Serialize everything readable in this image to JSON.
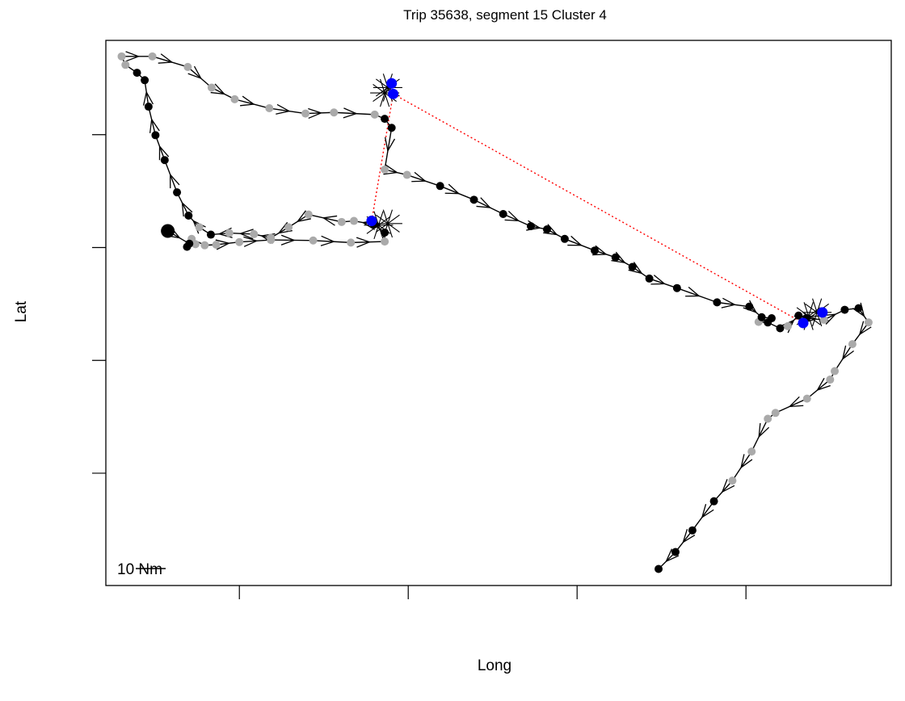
{
  "chart_data": {
    "type": "scatter",
    "title": "Trip 35638, segment 15 Cluster 4",
    "xlabel": "Long",
    "ylabel": "Lat",
    "x_ticks": 4,
    "y_ticks": 4,
    "tick_labels_shown": false,
    "grid": false,
    "legend": "none",
    "xlim": [
      0,
      100
    ],
    "ylim": [
      0,
      100
    ],
    "scale_bar": {
      "label": "10 Nm"
    },
    "colors": {
      "track": "#000000",
      "point_dark": "#000000",
      "point_light": "#aaaaaa",
      "cluster_point": "#0000ff",
      "connector": "#ff0000"
    },
    "track": [
      {
        "x": 70.8,
        "y": 1.6,
        "c": "d"
      },
      {
        "x": 73.0,
        "y": 4.8,
        "c": "d"
      },
      {
        "x": 75.2,
        "y": 8.9,
        "c": "d"
      },
      {
        "x": 78.0,
        "y": 14.4,
        "c": "d"
      },
      {
        "x": 80.4,
        "y": 18.3,
        "c": "l"
      },
      {
        "x": 82.9,
        "y": 23.8,
        "c": "l"
      },
      {
        "x": 85.0,
        "y": 30.0,
        "c": "l"
      },
      {
        "x": 86.0,
        "y": 31.1,
        "c": "l"
      },
      {
        "x": 90.1,
        "y": 33.8,
        "c": "l"
      },
      {
        "x": 93.1,
        "y": 37.4,
        "c": "l"
      },
      {
        "x": 93.7,
        "y": 39.0,
        "c": "l"
      },
      {
        "x": 96.0,
        "y": 44.1,
        "c": "l"
      },
      {
        "x": 98.1,
        "y": 48.2,
        "c": "l"
      },
      {
        "x": 96.8,
        "y": 50.9,
        "c": "d"
      },
      {
        "x": 95.0,
        "y": 50.6,
        "c": "d"
      },
      {
        "x": 92.3,
        "y": 48.7,
        "c": "l"
      },
      {
        "x": 90.0,
        "y": 49.0,
        "c": "d"
      },
      {
        "x": 89.0,
        "y": 49.5,
        "c": "b"
      },
      {
        "x": 87.6,
        "y": 47.5,
        "c": "l"
      },
      {
        "x": 86.6,
        "y": 47.1,
        "c": "b"
      },
      {
        "x": 85.0,
        "y": 48.2,
        "c": "d"
      },
      {
        "x": 83.8,
        "y": 48.3,
        "c": "l"
      },
      {
        "x": 85.5,
        "y": 49.0,
        "c": "d"
      },
      {
        "x": 84.2,
        "y": 49.2,
        "c": "d"
      },
      {
        "x": 82.6,
        "y": 51.2,
        "c": "d"
      },
      {
        "x": 78.4,
        "y": 52.0,
        "c": "d"
      },
      {
        "x": 73.2,
        "y": 54.7,
        "c": "d"
      },
      {
        "x": 69.6,
        "y": 56.5,
        "c": "d"
      },
      {
        "x": 67.4,
        "y": 58.7,
        "c": "d"
      },
      {
        "x": 65.2,
        "y": 60.5,
        "c": "d"
      },
      {
        "x": 62.5,
        "y": 61.8,
        "c": "d"
      },
      {
        "x": 58.6,
        "y": 64.0,
        "c": "d"
      },
      {
        "x": 56.3,
        "y": 65.8,
        "c": "d"
      },
      {
        "x": 54.2,
        "y": 66.4,
        "c": "d"
      },
      {
        "x": 50.6,
        "y": 68.7,
        "c": "d"
      },
      {
        "x": 46.8,
        "y": 71.4,
        "c": "d"
      },
      {
        "x": 42.4,
        "y": 74.0,
        "c": "d"
      },
      {
        "x": 38.1,
        "y": 76.1,
        "c": "l"
      },
      {
        "x": 35.2,
        "y": 77.1,
        "c": "l"
      },
      {
        "x": 36.1,
        "y": 85.0,
        "c": "d"
      },
      {
        "x": 35.2,
        "y": 86.7,
        "c": "d"
      },
      {
        "x": 33.9,
        "y": 87.5,
        "c": "l"
      },
      {
        "x": 28.6,
        "y": 87.9,
        "c": "l"
      },
      {
        "x": 24.9,
        "y": 87.7,
        "c": "l"
      },
      {
        "x": 20.2,
        "y": 88.7,
        "c": "l"
      },
      {
        "x": 15.7,
        "y": 90.4,
        "c": "l"
      },
      {
        "x": 12.7,
        "y": 92.6,
        "c": "l"
      },
      {
        "x": 9.6,
        "y": 96.5,
        "c": "l"
      },
      {
        "x": 5.0,
        "y": 98.5,
        "c": "l"
      },
      {
        "x": 1.0,
        "y": 98.5,
        "c": "l"
      },
      {
        "x": 1.5,
        "y": 96.9,
        "c": "l"
      },
      {
        "x": 3.0,
        "y": 95.4,
        "c": "d"
      },
      {
        "x": 4.0,
        "y": 94.0,
        "c": "d"
      },
      {
        "x": 4.5,
        "y": 89.0,
        "c": "d"
      },
      {
        "x": 5.4,
        "y": 83.6,
        "c": "d"
      },
      {
        "x": 6.6,
        "y": 78.9,
        "c": "d"
      },
      {
        "x": 8.2,
        "y": 72.8,
        "c": "d"
      },
      {
        "x": 9.7,
        "y": 68.4,
        "c": "d"
      },
      {
        "x": 11.1,
        "y": 66.2,
        "c": "l"
      },
      {
        "x": 12.6,
        "y": 64.8,
        "c": "d"
      },
      {
        "x": 15.0,
        "y": 65.1,
        "c": "l"
      },
      {
        "x": 18.2,
        "y": 64.9,
        "c": "l"
      },
      {
        "x": 20.4,
        "y": 64.2,
        "c": "l"
      },
      {
        "x": 22.7,
        "y": 66.2,
        "c": "l"
      },
      {
        "x": 25.3,
        "y": 68.6,
        "c": "l"
      },
      {
        "x": 29.6,
        "y": 67.2,
        "c": "l"
      },
      {
        "x": 31.2,
        "y": 67.4,
        "c": "l"
      },
      {
        "x": 33.8,
        "y": 66.7,
        "c": "d"
      },
      {
        "x": 35.2,
        "y": 65.2,
        "c": "d"
      },
      {
        "x": 35.2,
        "y": 63.5,
        "c": "l"
      },
      {
        "x": 30.8,
        "y": 63.3,
        "c": "l"
      },
      {
        "x": 25.9,
        "y": 63.7,
        "c": "l"
      },
      {
        "x": 20.4,
        "y": 63.8,
        "c": "l"
      },
      {
        "x": 16.3,
        "y": 63.4,
        "c": "l"
      },
      {
        "x": 13.3,
        "y": 62.9,
        "c": "l"
      },
      {
        "x": 11.8,
        "y": 62.8,
        "c": "l"
      },
      {
        "x": 10.1,
        "y": 64.0,
        "c": "l"
      },
      {
        "x": 10.6,
        "y": 63.0,
        "c": "l"
      },
      {
        "x": 9.5,
        "y": 62.5,
        "c": "d"
      },
      {
        "x": 9.8,
        "y": 63.1,
        "c": "d"
      },
      {
        "x": 7.0,
        "y": 65.5,
        "c": "d"
      }
    ],
    "cluster_points": [
      {
        "x": 36.1,
        "y": 93.4
      },
      {
        "x": 36.3,
        "y": 91.4
      },
      {
        "x": 33.5,
        "y": 67.4
      },
      {
        "x": 92.1,
        "y": 50.1
      },
      {
        "x": 89.6,
        "y": 48.1
      }
    ],
    "cluster_connectors": [
      [
        {
          "x": 33.5,
          "y": 67.4
        },
        {
          "x": 36.3,
          "y": 91.4
        }
      ],
      [
        {
          "x": 36.3,
          "y": 91.4
        },
        {
          "x": 89.6,
          "y": 48.1
        }
      ]
    ],
    "direction_marks": [
      {
        "x": 35.6,
        "y": 92.6
      },
      {
        "x": 35.2,
        "y": 91.6
      },
      {
        "x": 34.4,
        "y": 66.6
      },
      {
        "x": 35.6,
        "y": 66.9
      },
      {
        "x": 90.3,
        "y": 49.4
      },
      {
        "x": 91.4,
        "y": 50.1
      }
    ]
  }
}
